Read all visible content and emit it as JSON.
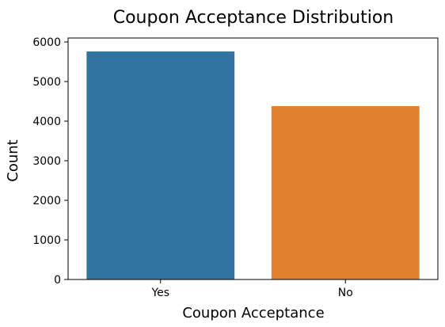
{
  "chart_data": {
    "type": "bar",
    "title": "Coupon Acceptance Distribution",
    "xlabel": "Coupon Acceptance",
    "ylabel": "Count",
    "categories": [
      "Yes",
      "No"
    ],
    "values": [
      5760,
      4380
    ],
    "colors": [
      "#3274a1",
      "#e1812c"
    ],
    "ylim": [
      0,
      6100
    ],
    "yticks": [
      0,
      1000,
      2000,
      3000,
      4000,
      5000,
      6000
    ],
    "grid": false,
    "legend": "none"
  }
}
